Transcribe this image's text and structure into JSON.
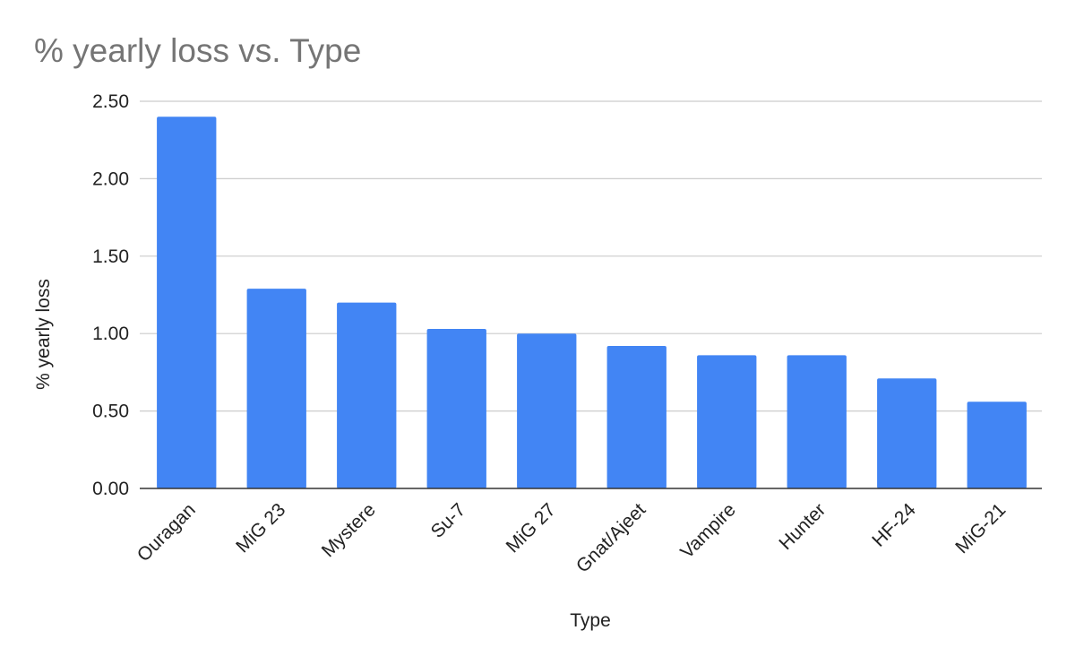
{
  "chart_data": {
    "type": "bar",
    "title": "% yearly loss vs. Type",
    "xlabel": "Type",
    "ylabel": "% yearly loss",
    "categories": [
      "Ouragan",
      "MiG 23",
      "Mystere",
      "Su-7",
      "MiG 27",
      "Gnat/Ajeet",
      "Vampire",
      "Hunter",
      "HF-24",
      "MiG-21"
    ],
    "values": [
      2.4,
      1.29,
      1.2,
      1.03,
      1.0,
      0.92,
      0.86,
      0.86,
      0.71,
      0.56
    ],
    "ylim": [
      0,
      2.5
    ],
    "yticks": [
      "0.00",
      "0.50",
      "1.00",
      "1.50",
      "2.00",
      "2.50"
    ],
    "grid": true,
    "legend": "none",
    "bar_color": "#4285f4"
  }
}
